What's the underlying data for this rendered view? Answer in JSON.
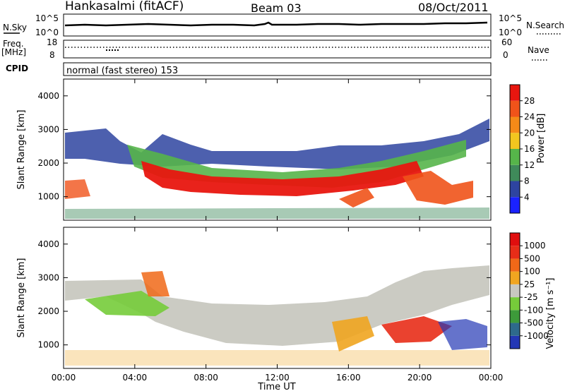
{
  "header": {
    "station": "Hankasalmi (fitACF)",
    "beam": "Beam 03",
    "date": "08/Oct/2011"
  },
  "strip_noise": {
    "left_label": "N.Sky",
    "right_label": "N.Search",
    "left_ticks": [
      "10^5",
      "10^0"
    ],
    "right_ticks": [
      "10^5",
      "10^0"
    ]
  },
  "strip_freq": {
    "left_label_line1": "Freq.",
    "left_label_line2": "[MHz]",
    "right_label": "Nave",
    "left_ticks": [
      "18",
      "8"
    ],
    "right_ticks": [
      "60",
      "0"
    ]
  },
  "strip_cpid": {
    "label": "CPID",
    "text": "normal (fast stereo) 153"
  },
  "chart_data": [
    {
      "type": "heatmap",
      "title": "",
      "ylabel": "Slant Range [km]",
      "xlabel": "Time UT",
      "y_ticks": [
        "1000",
        "2000",
        "3000",
        "4000"
      ],
      "x_ticks": [
        "00:00",
        "04:00",
        "08:00",
        "12:00",
        "16:00",
        "20:00",
        "00:00"
      ],
      "ylim": [
        300,
        4500
      ],
      "xlim": [
        0,
        24
      ],
      "colorbar": {
        "label": "Power [dB]",
        "levels": [
          "4",
          "8",
          "12",
          "16",
          "20",
          "24",
          "28"
        ],
        "colors": [
          "#1a22ff",
          "#2e44a0",
          "#3f8a5a",
          "#56b54a",
          "#f2c61f",
          "#f58a18",
          "#f0531a",
          "#e8160f"
        ]
      }
    },
    {
      "type": "heatmap",
      "title": "",
      "ylabel": "Slant Range [km]",
      "xlabel": "Time UT",
      "y_ticks": [
        "1000",
        "2000",
        "3000",
        "4000"
      ],
      "x_ticks": [
        "00:00",
        "04:00",
        "08:00",
        "12:00",
        "16:00",
        "20:00",
        "00:00"
      ],
      "ylim": [
        300,
        4500
      ],
      "xlim": [
        0,
        24
      ],
      "colorbar": {
        "label": "Velocity [m s⁻¹]",
        "levels": [
          "1000",
          "500",
          "100",
          "25",
          "-25",
          "-100",
          "-500",
          "-1000"
        ],
        "colors": [
          "#2337b5",
          "#2e6a8c",
          "#3d9a3a",
          "#76cc3a",
          "#c8c8c0",
          "#f0a520",
          "#f06818",
          "#e82d18",
          "#e00e0e"
        ]
      }
    }
  ],
  "palette": {
    "power_low": "#2e44a0",
    "power_mid": "#56b54a",
    "power_high": "#e8160f",
    "velocity_gray": "#c8c8c0"
  }
}
